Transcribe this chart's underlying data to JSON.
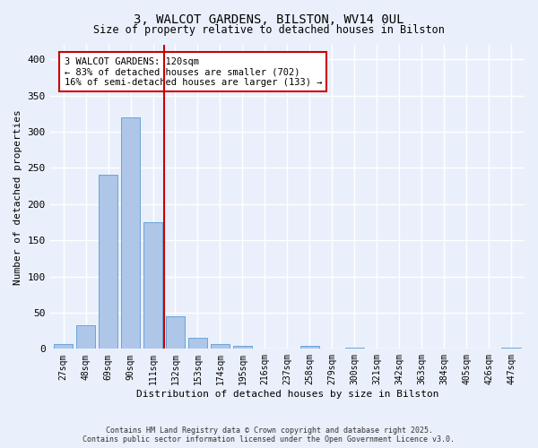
{
  "title1": "3, WALCOT GARDENS, BILSTON, WV14 0UL",
  "title2": "Size of property relative to detached houses in Bilston",
  "xlabel": "Distribution of detached houses by size in Bilston",
  "ylabel": "Number of detached properties",
  "bar_labels": [
    "27sqm",
    "48sqm",
    "69sqm",
    "90sqm",
    "111sqm",
    "132sqm",
    "153sqm",
    "174sqm",
    "195sqm",
    "216sqm",
    "237sqm",
    "258sqm",
    "279sqm",
    "300sqm",
    "321sqm",
    "342sqm",
    "363sqm",
    "384sqm",
    "405sqm",
    "426sqm",
    "447sqm"
  ],
  "bar_values": [
    7,
    32,
    240,
    320,
    175,
    45,
    15,
    7,
    4,
    0,
    0,
    4,
    0,
    2,
    0,
    0,
    0,
    0,
    0,
    0,
    2
  ],
  "bar_color": "#aec6e8",
  "bar_edge_color": "#5b9bd5",
  "bg_color": "#eaf0fb",
  "grid_color": "#ffffff",
  "vline_color": "#cc0000",
  "annotation_text": "3 WALCOT GARDENS: 120sqm\n← 83% of detached houses are smaller (702)\n16% of semi-detached houses are larger (133) →",
  "annotation_box_color": "#ffffff",
  "annotation_box_edge": "#cc0000",
  "footnote1": "Contains HM Land Registry data © Crown copyright and database right 2025.",
  "footnote2": "Contains public sector information licensed under the Open Government Licence v3.0.",
  "ylim": [
    0,
    420
  ],
  "yticks": [
    0,
    50,
    100,
    150,
    200,
    250,
    300,
    350,
    400
  ]
}
